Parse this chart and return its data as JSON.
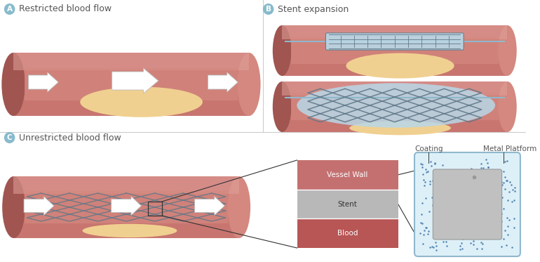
{
  "bg_color": "#ffffff",
  "label_color": "#555555",
  "vessel_outer": "#c87570",
  "vessel_mid": "#d4887f",
  "vessel_light": "#e0a09a",
  "vessel_dark": "#a05550",
  "vessel_inner_light": "#cc8888",
  "plaque_color": "#f0d090",
  "plaque_edge": "#e0c070",
  "balloon_color": "#aaccdd",
  "balloon_fill": "#b8d8e8",
  "stent_wire": "#607888",
  "stent_blue": "#90b8cc",
  "arrow_fill": "#ffffff",
  "arrow_edge": "#bbbbbb",
  "divider_color": "#cccccc",
  "circle_color": "#88bbcc",
  "vessel_wall_layer": "#c47070",
  "stent_layer": "#b8b8b8",
  "blood_layer": "#b85555",
  "coating_dot": "#4477aa",
  "metal_fill": "#c0c0c0",
  "metal_edge": "#999999",
  "panel_A": "A",
  "panel_B": "B",
  "panel_C": "C",
  "title_A": "Restricted blood flow",
  "title_B": "Stent expansion",
  "title_C": "Unrestricted blood flow",
  "label_vessel_wall": "Vessel Wall",
  "label_stent": "Stent",
  "label_blood": "Blood",
  "label_coating": "Coating",
  "label_metal": "Metal Platform"
}
